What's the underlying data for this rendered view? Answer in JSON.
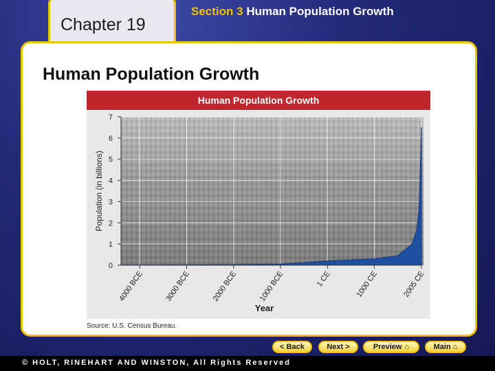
{
  "header": {
    "chapter_label": "Chapter 19",
    "section_number": "Section 3",
    "section_title": "Human Population Growth"
  },
  "slide_title": "Human Population Growth",
  "chart_data": {
    "type": "area",
    "title": "Human Population Growth",
    "xlabel": "Year",
    "ylabel": "Population (in billions)",
    "ylim": [
      0,
      7
    ],
    "yticks": [
      0,
      1,
      2,
      3,
      4,
      5,
      6,
      7
    ],
    "xticks": [
      {
        "label": "4000 BCE",
        "value": -4000
      },
      {
        "label": "3000 BCE",
        "value": -3000
      },
      {
        "label": "2000 BCE",
        "value": -2000
      },
      {
        "label": "1000 BCE",
        "value": -1000
      },
      {
        "label": "1 CE",
        "value": 1
      },
      {
        "label": "1000 CE",
        "value": 1000
      },
      {
        "label": "2005 CE",
        "value": 2005
      }
    ],
    "xlim": [
      -4400,
      2005
    ],
    "grid": true,
    "series": [
      {
        "x": [
          -4400,
          -4000,
          -3000,
          -2000,
          -1000,
          1,
          1000,
          1500,
          1800,
          1900,
          1950,
          1970,
          1990,
          2005
        ],
        "values": [
          0.005,
          0.007,
          0.014,
          0.027,
          0.05,
          0.2,
          0.3,
          0.45,
          1.0,
          1.6,
          2.5,
          3.7,
          5.3,
          6.5
        ]
      }
    ],
    "colors": {
      "fill": "#1f4fa0",
      "header": "#c0272d"
    },
    "source": "Source:  U.S. Census Bureau."
  },
  "nav": {
    "back": "< Back",
    "next": "Next >",
    "preview": "Preview",
    "main": "Main"
  },
  "footer": "© HOLT, RINEHART AND WINSTON, All Rights Reserved"
}
